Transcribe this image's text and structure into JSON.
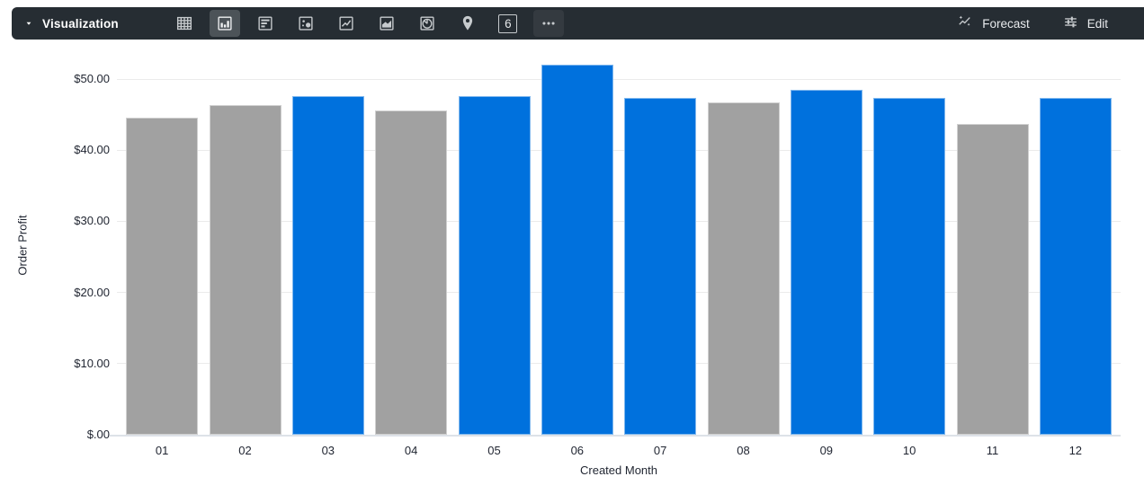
{
  "toolbar": {
    "caret_icon": "caret-down-icon",
    "title": "Visualization",
    "chart_type_icons": [
      {
        "name": "table-icon",
        "selected": false
      },
      {
        "name": "column-chart-icon",
        "selected": true
      },
      {
        "name": "bar-chart-horizontal-icon",
        "selected": false
      },
      {
        "name": "scatter-chart-icon",
        "selected": false
      },
      {
        "name": "line-chart-icon",
        "selected": false
      },
      {
        "name": "area-chart-icon",
        "selected": false
      },
      {
        "name": "pie-chart-icon",
        "selected": false
      },
      {
        "name": "map-pin-icon",
        "selected": false
      },
      {
        "name": "single-value-icon",
        "selected": false,
        "glyph": "6"
      },
      {
        "name": "more-options-icon",
        "selected": false
      }
    ],
    "forecast": {
      "icon": "forecast-icon",
      "label": "Forecast"
    },
    "edit": {
      "icon": "edit-icon",
      "label": "Edit"
    }
  },
  "chart_data": {
    "type": "bar",
    "title": "",
    "categories": [
      "01",
      "02",
      "03",
      "04",
      "05",
      "06",
      "07",
      "08",
      "09",
      "10",
      "11",
      "12"
    ],
    "values": [
      44.6,
      46.4,
      47.6,
      45.6,
      47.6,
      52.0,
      47.3,
      46.7,
      48.5,
      47.3,
      43.7,
      47.3
    ],
    "bar_colors": [
      "gray",
      "gray",
      "blue",
      "gray",
      "blue",
      "blue",
      "blue",
      "gray",
      "blue",
      "blue",
      "gray",
      "blue"
    ],
    "xlabel": "Created Month",
    "ylabel": "Order Profit",
    "ylim": [
      0,
      55
    ],
    "grid": true,
    "legend": false,
    "yticks": [
      {
        "value": 0,
        "label": "$.00"
      },
      {
        "value": 10,
        "label": "$10.00"
      },
      {
        "value": 20,
        "label": "$20.00"
      },
      {
        "value": 30,
        "label": "$30.00"
      },
      {
        "value": 40,
        "label": "$40.00"
      },
      {
        "value": 50,
        "label": "$50.00"
      }
    ],
    "colors": {
      "blue": "#0071dd",
      "gray": "#a1a1a1"
    }
  },
  "theme": {
    "toolbar_bg": "#262d33",
    "selected_icon_bg": "#4c5358",
    "icon_color": "#c6cacd",
    "gridline_color": "#ebebeb",
    "axis_text_color": "#1f2430"
  }
}
